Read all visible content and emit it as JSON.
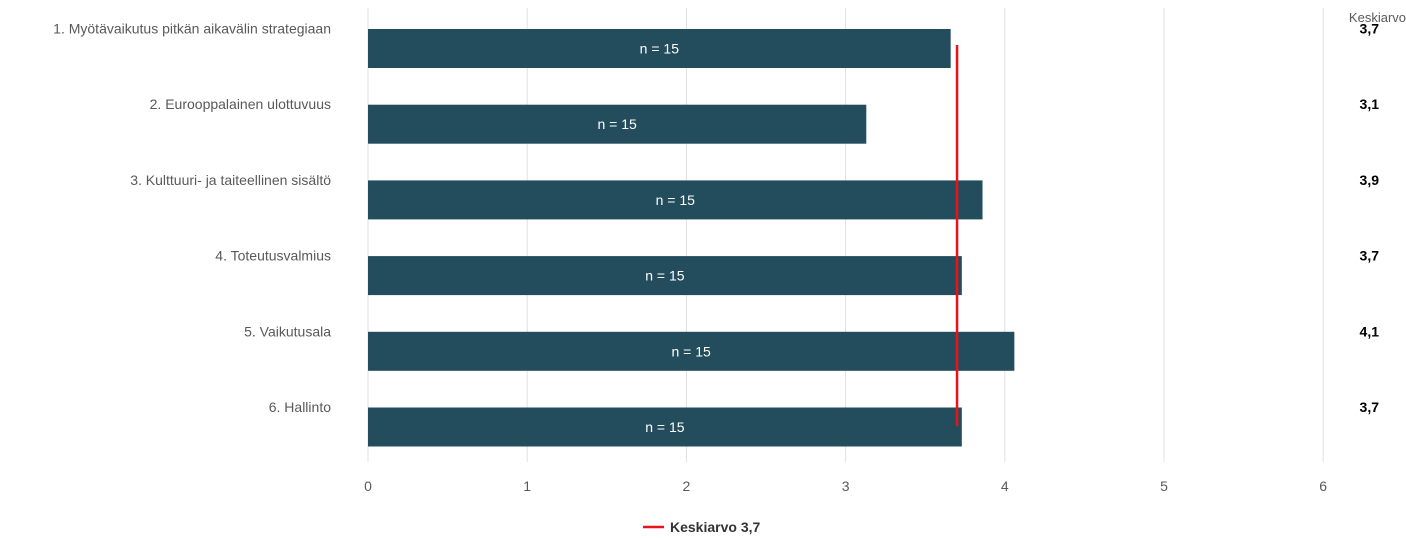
{
  "chart_data": {
    "type": "bar",
    "orientation": "horizontal",
    "categories": [
      "1. Myötävaikutus pitkän aikavälin strategiaan",
      "2. Eurooppalainen ulottuvuus",
      "3. Kulttuuri- ja taiteellinen sisältö",
      "4. Toteutusvalmius",
      "5. Vaikutusala",
      "6. Hallinto"
    ],
    "values": [
      3.66,
      3.13,
      3.86,
      3.73,
      4.06,
      3.73
    ],
    "bar_labels": [
      "n = 15",
      "n = 15",
      "n = 15",
      "n = 15",
      "n = 15",
      "n = 15"
    ],
    "side_column_header": "Keskiarvo",
    "side_values": [
      "3,7",
      "3,1",
      "3,9",
      "3,7",
      "4,1",
      "3,7"
    ],
    "x_ticks": [
      "0",
      "1",
      "2",
      "3",
      "4",
      "5",
      "6"
    ],
    "xlim": [
      0,
      6
    ],
    "grid": true,
    "reference_line": {
      "value": 3.7,
      "label": "Keskiarvo 3,7"
    },
    "legend_position": "bottom",
    "colors": {
      "bar": "#234d5c",
      "reference_line": "#e8131b",
      "grid": "#e0e0e0"
    }
  }
}
